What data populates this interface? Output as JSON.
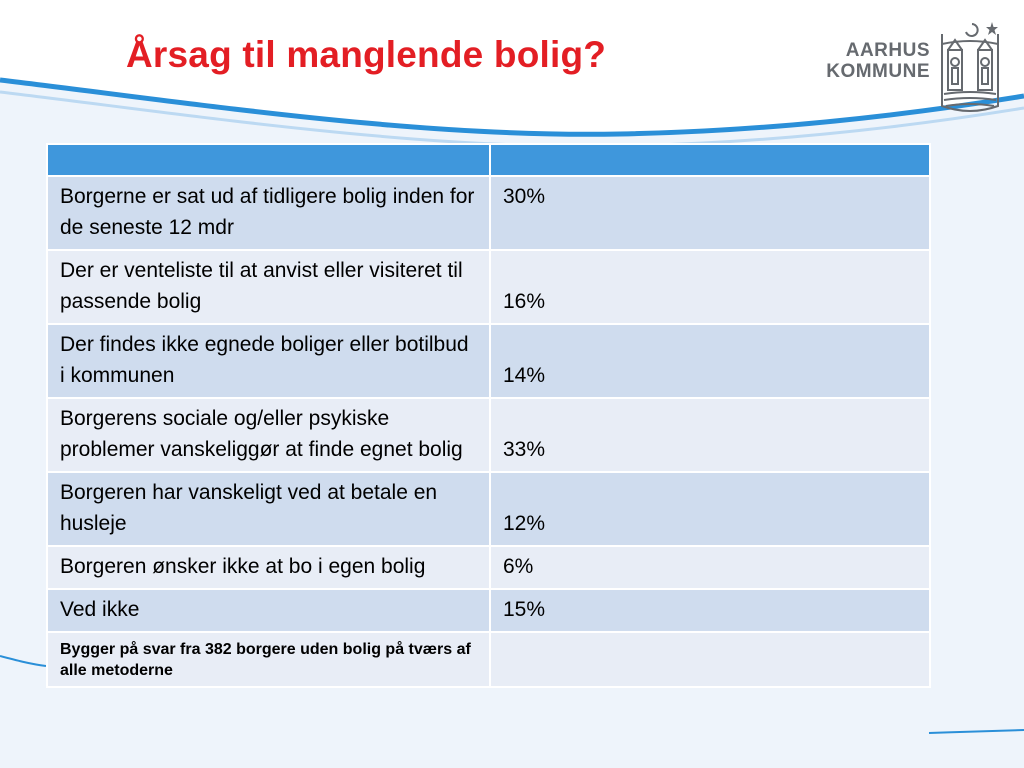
{
  "title": "Årsag til manglende bolig?",
  "logo": {
    "line1": "AARHUS",
    "line2": "KOMMUNE"
  },
  "colors": {
    "title": "#e31e24",
    "header": "#3f97dc",
    "row_dark": "#cfdcee",
    "row_light": "#e8edf6",
    "swoosh": "#2a8fd8"
  },
  "table": {
    "header": [
      "",
      ""
    ],
    "rows": [
      {
        "label": "Borgerne er sat ud af tidligere bolig inden for de seneste 12 mdr",
        "value": "30%"
      },
      {
        "label": "Der er venteliste til at anvist eller visiteret til passende bolig",
        "value": "16%"
      },
      {
        "label": "Der findes ikke egnede boliger eller botilbud i kommunen",
        "value": "14%"
      },
      {
        "label": "Borgerens sociale og/eller psykiske problemer vanskeliggør at finde egnet bolig",
        "value": "33%"
      },
      {
        "label": "Borgeren har vanskeligt ved at betale en husleje",
        "value": "12%"
      },
      {
        "label": "Borgeren ønsker ikke at bo i egen bolig",
        "value": "6%"
      },
      {
        "label": "Ved ikke",
        "value": "15%"
      }
    ],
    "note": "Bygger på svar fra 382 borgere uden bolig på tværs af alle metoderne"
  }
}
